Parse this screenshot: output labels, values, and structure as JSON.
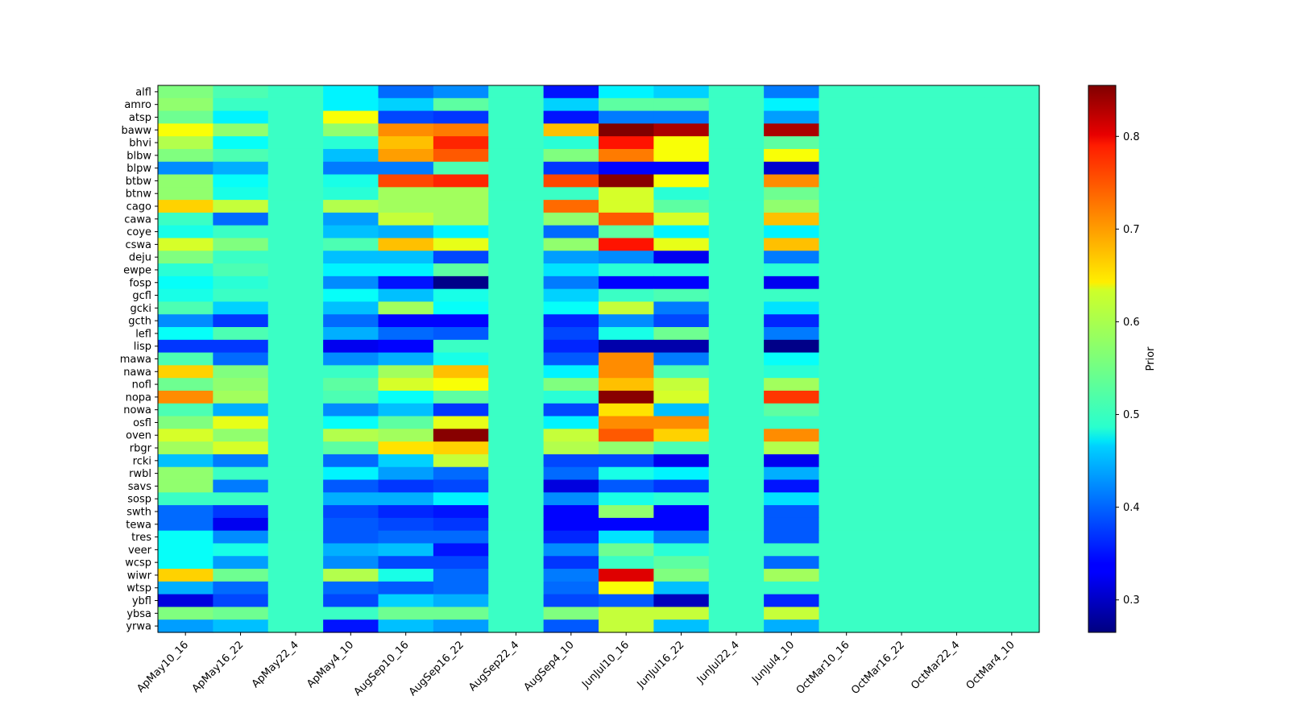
{
  "chart_data": {
    "type": "heatmap",
    "title": "",
    "xlabel": "",
    "ylabel": "",
    "colormap": "jet",
    "colorbar_label": "Prior",
    "colorbar_range": [
      0.265,
      0.855
    ],
    "colorbar_ticks": [
      0.3,
      0.4,
      0.5,
      0.6,
      0.7,
      0.8
    ],
    "x_categories": [
      "ApMay10_16",
      "ApMay16_22",
      "ApMay22_4",
      "ApMay4_10",
      "AugSep10_16",
      "AugSep16_22",
      "AugSep22_4",
      "AugSep4_10",
      "JunJul10_16",
      "JunJul16_22",
      "JunJul22_4",
      "JunJul4_10",
      "OctMar10_16",
      "OctMar16_22",
      "OctMar22_4",
      "OctMar4_10"
    ],
    "y_categories": [
      "alfl",
      "amro",
      "atsp",
      "baww",
      "bhvi",
      "blbw",
      "blpw",
      "btbw",
      "btnw",
      "cago",
      "cawa",
      "coye",
      "cswa",
      "deju",
      "ewpe",
      "fosp",
      "gcfl",
      "gcki",
      "gcth",
      "lefl",
      "lisp",
      "mawa",
      "nawa",
      "nofl",
      "nopa",
      "nowa",
      "osfl",
      "oven",
      "rbgr",
      "rcki",
      "rwbl",
      "savs",
      "sosp",
      "swth",
      "tewa",
      "tres",
      "veer",
      "wcsp",
      "wiwr",
      "wtsp",
      "ybfl",
      "ybsa",
      "yrwa"
    ],
    "values": [
      [
        0.56,
        0.53,
        0.52,
        0.48,
        0.4,
        0.42,
        0.52,
        0.35,
        0.48,
        0.46,
        0.52,
        0.41,
        0.52,
        0.52,
        0.52,
        0.52
      ],
      [
        0.57,
        0.52,
        0.52,
        0.48,
        0.46,
        0.54,
        0.52,
        0.46,
        0.54,
        0.54,
        0.52,
        0.48,
        0.52,
        0.52,
        0.52,
        0.52
      ],
      [
        0.55,
        0.48,
        0.52,
        0.63,
        0.38,
        0.37,
        0.52,
        0.35,
        0.41,
        0.41,
        0.52,
        0.43,
        0.52,
        0.52,
        0.52,
        0.52
      ],
      [
        0.63,
        0.57,
        0.52,
        0.57,
        0.7,
        0.71,
        0.52,
        0.67,
        0.86,
        0.83,
        0.52,
        0.83,
        0.52,
        0.52,
        0.52,
        0.52
      ],
      [
        0.59,
        0.49,
        0.52,
        0.51,
        0.67,
        0.76,
        0.52,
        0.51,
        0.77,
        0.63,
        0.52,
        0.54,
        0.52,
        0.52,
        0.52,
        0.52
      ],
      [
        0.56,
        0.53,
        0.52,
        0.45,
        0.69,
        0.73,
        0.52,
        0.56,
        0.71,
        0.63,
        0.52,
        0.63,
        0.52,
        0.52,
        0.52,
        0.52
      ],
      [
        0.42,
        0.44,
        0.52,
        0.41,
        0.41,
        0.53,
        0.52,
        0.37,
        0.34,
        0.34,
        0.52,
        0.31,
        0.52,
        0.52,
        0.52,
        0.52
      ],
      [
        0.57,
        0.49,
        0.52,
        0.5,
        0.74,
        0.76,
        0.52,
        0.74,
        0.85,
        0.63,
        0.52,
        0.7,
        0.52,
        0.52,
        0.52,
        0.52
      ],
      [
        0.57,
        0.5,
        0.52,
        0.51,
        0.58,
        0.58,
        0.52,
        0.52,
        0.61,
        0.51,
        0.52,
        0.55,
        0.52,
        0.52,
        0.52,
        0.52
      ],
      [
        0.66,
        0.6,
        0.52,
        0.59,
        0.58,
        0.58,
        0.52,
        0.72,
        0.61,
        0.54,
        0.52,
        0.57,
        0.52,
        0.52,
        0.52,
        0.52
      ],
      [
        0.52,
        0.4,
        0.52,
        0.43,
        0.6,
        0.58,
        0.52,
        0.57,
        0.73,
        0.61,
        0.52,
        0.67,
        0.52,
        0.52,
        0.52,
        0.52
      ],
      [
        0.5,
        0.52,
        0.52,
        0.45,
        0.44,
        0.48,
        0.52,
        0.4,
        0.54,
        0.48,
        0.52,
        0.48,
        0.52,
        0.52,
        0.52,
        0.52
      ],
      [
        0.61,
        0.56,
        0.52,
        0.53,
        0.67,
        0.62,
        0.52,
        0.57,
        0.77,
        0.62,
        0.52,
        0.67,
        0.52,
        0.52,
        0.52,
        0.52
      ],
      [
        0.56,
        0.52,
        0.52,
        0.45,
        0.45,
        0.38,
        0.52,
        0.43,
        0.42,
        0.33,
        0.52,
        0.41,
        0.52,
        0.52,
        0.52,
        0.52
      ],
      [
        0.51,
        0.53,
        0.52,
        0.48,
        0.48,
        0.54,
        0.52,
        0.47,
        0.51,
        0.51,
        0.52,
        0.51,
        0.52,
        0.52,
        0.52,
        0.52
      ],
      [
        0.49,
        0.51,
        0.52,
        0.42,
        0.35,
        0.27,
        0.52,
        0.41,
        0.34,
        0.34,
        0.52,
        0.33,
        0.52,
        0.52,
        0.52,
        0.52
      ],
      [
        0.5,
        0.52,
        0.52,
        0.49,
        0.45,
        0.5,
        0.52,
        0.46,
        0.52,
        0.53,
        0.52,
        0.52,
        0.52,
        0.52,
        0.52,
        0.52
      ],
      [
        0.53,
        0.46,
        0.52,
        0.45,
        0.58,
        0.49,
        0.52,
        0.49,
        0.6,
        0.41,
        0.52,
        0.47,
        0.52,
        0.52,
        0.52,
        0.52
      ],
      [
        0.42,
        0.37,
        0.52,
        0.4,
        0.34,
        0.34,
        0.52,
        0.36,
        0.42,
        0.38,
        0.52,
        0.36,
        0.52,
        0.52,
        0.52,
        0.52
      ],
      [
        0.49,
        0.53,
        0.52,
        0.44,
        0.4,
        0.39,
        0.52,
        0.38,
        0.5,
        0.55,
        0.52,
        0.41,
        0.52,
        0.52,
        0.52,
        0.52
      ],
      [
        0.37,
        0.37,
        0.52,
        0.33,
        0.34,
        0.52,
        0.52,
        0.36,
        0.29,
        0.29,
        0.52,
        0.27,
        0.52,
        0.52,
        0.52,
        0.52
      ],
      [
        0.53,
        0.4,
        0.52,
        0.42,
        0.44,
        0.5,
        0.52,
        0.39,
        0.7,
        0.41,
        0.52,
        0.49,
        0.52,
        0.52,
        0.52,
        0.52
      ],
      [
        0.66,
        0.56,
        0.52,
        0.52,
        0.58,
        0.67,
        0.52,
        0.48,
        0.7,
        0.53,
        0.52,
        0.51,
        0.52,
        0.52,
        0.52,
        0.52
      ],
      [
        0.55,
        0.57,
        0.52,
        0.54,
        0.61,
        0.63,
        0.52,
        0.56,
        0.67,
        0.6,
        0.52,
        0.58,
        0.52,
        0.52,
        0.52,
        0.52
      ],
      [
        0.7,
        0.58,
        0.52,
        0.53,
        0.49,
        0.54,
        0.52,
        0.51,
        0.85,
        0.61,
        0.52,
        0.75,
        0.52,
        0.52,
        0.52,
        0.52
      ],
      [
        0.53,
        0.44,
        0.52,
        0.42,
        0.45,
        0.37,
        0.52,
        0.38,
        0.65,
        0.45,
        0.52,
        0.54,
        0.52,
        0.52,
        0.52,
        0.52
      ],
      [
        0.56,
        0.62,
        0.52,
        0.49,
        0.54,
        0.62,
        0.52,
        0.48,
        0.7,
        0.7,
        0.52,
        0.52,
        0.52,
        0.52,
        0.52,
        0.52
      ],
      [
        0.61,
        0.57,
        0.52,
        0.59,
        0.58,
        0.85,
        0.52,
        0.6,
        0.73,
        0.66,
        0.52,
        0.7,
        0.52,
        0.52,
        0.52,
        0.52
      ],
      [
        0.58,
        0.61,
        0.52,
        0.54,
        0.65,
        0.66,
        0.52,
        0.59,
        0.57,
        0.53,
        0.52,
        0.59,
        0.52,
        0.52,
        0.52,
        0.52
      ],
      [
        0.45,
        0.41,
        0.52,
        0.4,
        0.46,
        0.6,
        0.52,
        0.38,
        0.38,
        0.33,
        0.52,
        0.33,
        0.52,
        0.52,
        0.52,
        0.52
      ],
      [
        0.57,
        0.52,
        0.52,
        0.48,
        0.43,
        0.4,
        0.52,
        0.4,
        0.5,
        0.48,
        0.52,
        0.44,
        0.52,
        0.52,
        0.52,
        0.52
      ],
      [
        0.57,
        0.41,
        0.52,
        0.39,
        0.37,
        0.38,
        0.52,
        0.32,
        0.39,
        0.37,
        0.52,
        0.35,
        0.52,
        0.52,
        0.52,
        0.52
      ],
      [
        0.52,
        0.52,
        0.52,
        0.44,
        0.44,
        0.48,
        0.52,
        0.42,
        0.5,
        0.51,
        0.52,
        0.47,
        0.52,
        0.52,
        0.52,
        0.52
      ],
      [
        0.4,
        0.37,
        0.52,
        0.38,
        0.36,
        0.35,
        0.52,
        0.34,
        0.57,
        0.34,
        0.52,
        0.39,
        0.52,
        0.52,
        0.52,
        0.52
      ],
      [
        0.4,
        0.33,
        0.52,
        0.39,
        0.38,
        0.37,
        0.52,
        0.34,
        0.34,
        0.34,
        0.52,
        0.39,
        0.52,
        0.52,
        0.52,
        0.52
      ],
      [
        0.49,
        0.42,
        0.52,
        0.39,
        0.4,
        0.4,
        0.52,
        0.36,
        0.47,
        0.41,
        0.52,
        0.39,
        0.52,
        0.52,
        0.52,
        0.52
      ],
      [
        0.49,
        0.5,
        0.52,
        0.44,
        0.45,
        0.35,
        0.52,
        0.42,
        0.55,
        0.51,
        0.52,
        0.52,
        0.52,
        0.52,
        0.52,
        0.52
      ],
      [
        0.49,
        0.43,
        0.52,
        0.42,
        0.38,
        0.38,
        0.52,
        0.37,
        0.52,
        0.54,
        0.52,
        0.4,
        0.52,
        0.52,
        0.52,
        0.52
      ],
      [
        0.66,
        0.55,
        0.52,
        0.59,
        0.5,
        0.4,
        0.52,
        0.41,
        0.8,
        0.56,
        0.52,
        0.58,
        0.52,
        0.52,
        0.52,
        0.52
      ],
      [
        0.44,
        0.4,
        0.52,
        0.4,
        0.39,
        0.4,
        0.52,
        0.4,
        0.63,
        0.45,
        0.52,
        0.52,
        0.52,
        0.52,
        0.52,
        0.52
      ],
      [
        0.32,
        0.38,
        0.52,
        0.38,
        0.46,
        0.44,
        0.52,
        0.38,
        0.39,
        0.3,
        0.52,
        0.36,
        0.52,
        0.52,
        0.52,
        0.52
      ],
      [
        0.56,
        0.55,
        0.52,
        0.52,
        0.55,
        0.55,
        0.52,
        0.56,
        0.6,
        0.6,
        0.52,
        0.6,
        0.52,
        0.52,
        0.52,
        0.52
      ],
      [
        0.43,
        0.45,
        0.52,
        0.35,
        0.45,
        0.43,
        0.52,
        0.39,
        0.6,
        0.45,
        0.52,
        0.44,
        0.52,
        0.52,
        0.52,
        0.52
      ]
    ]
  }
}
